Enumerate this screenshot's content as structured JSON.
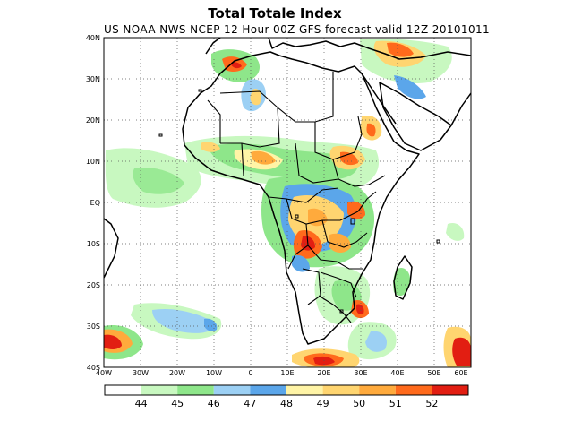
{
  "title": "Total Totale Index",
  "subtitle": "US NOAA NWS NCEP 12 Hour 00Z GFS forecast valid 12Z 20101011",
  "lat_labels": [
    "40N",
    "30N",
    "20N",
    "10N",
    "EQ",
    "10S",
    "20S",
    "30S",
    "40S"
  ],
  "lon_labels": [
    "40W",
    "30W",
    "20W",
    "10W",
    "0",
    "10E",
    "20E",
    "30E",
    "40E",
    "50E",
    "60E"
  ],
  "legend": {
    "labels": [
      "44",
      "45",
      "46",
      "47",
      "48",
      "49",
      "50",
      "51",
      "52"
    ],
    "colors": [
      "#ffffff",
      "#c8f8c0",
      "#8ee68a",
      "#9cd0f4",
      "#5ba6ea",
      "#fff4a6",
      "#ffd570",
      "#ffaa3c",
      "#ff6a1c",
      "#e21e12"
    ]
  }
}
